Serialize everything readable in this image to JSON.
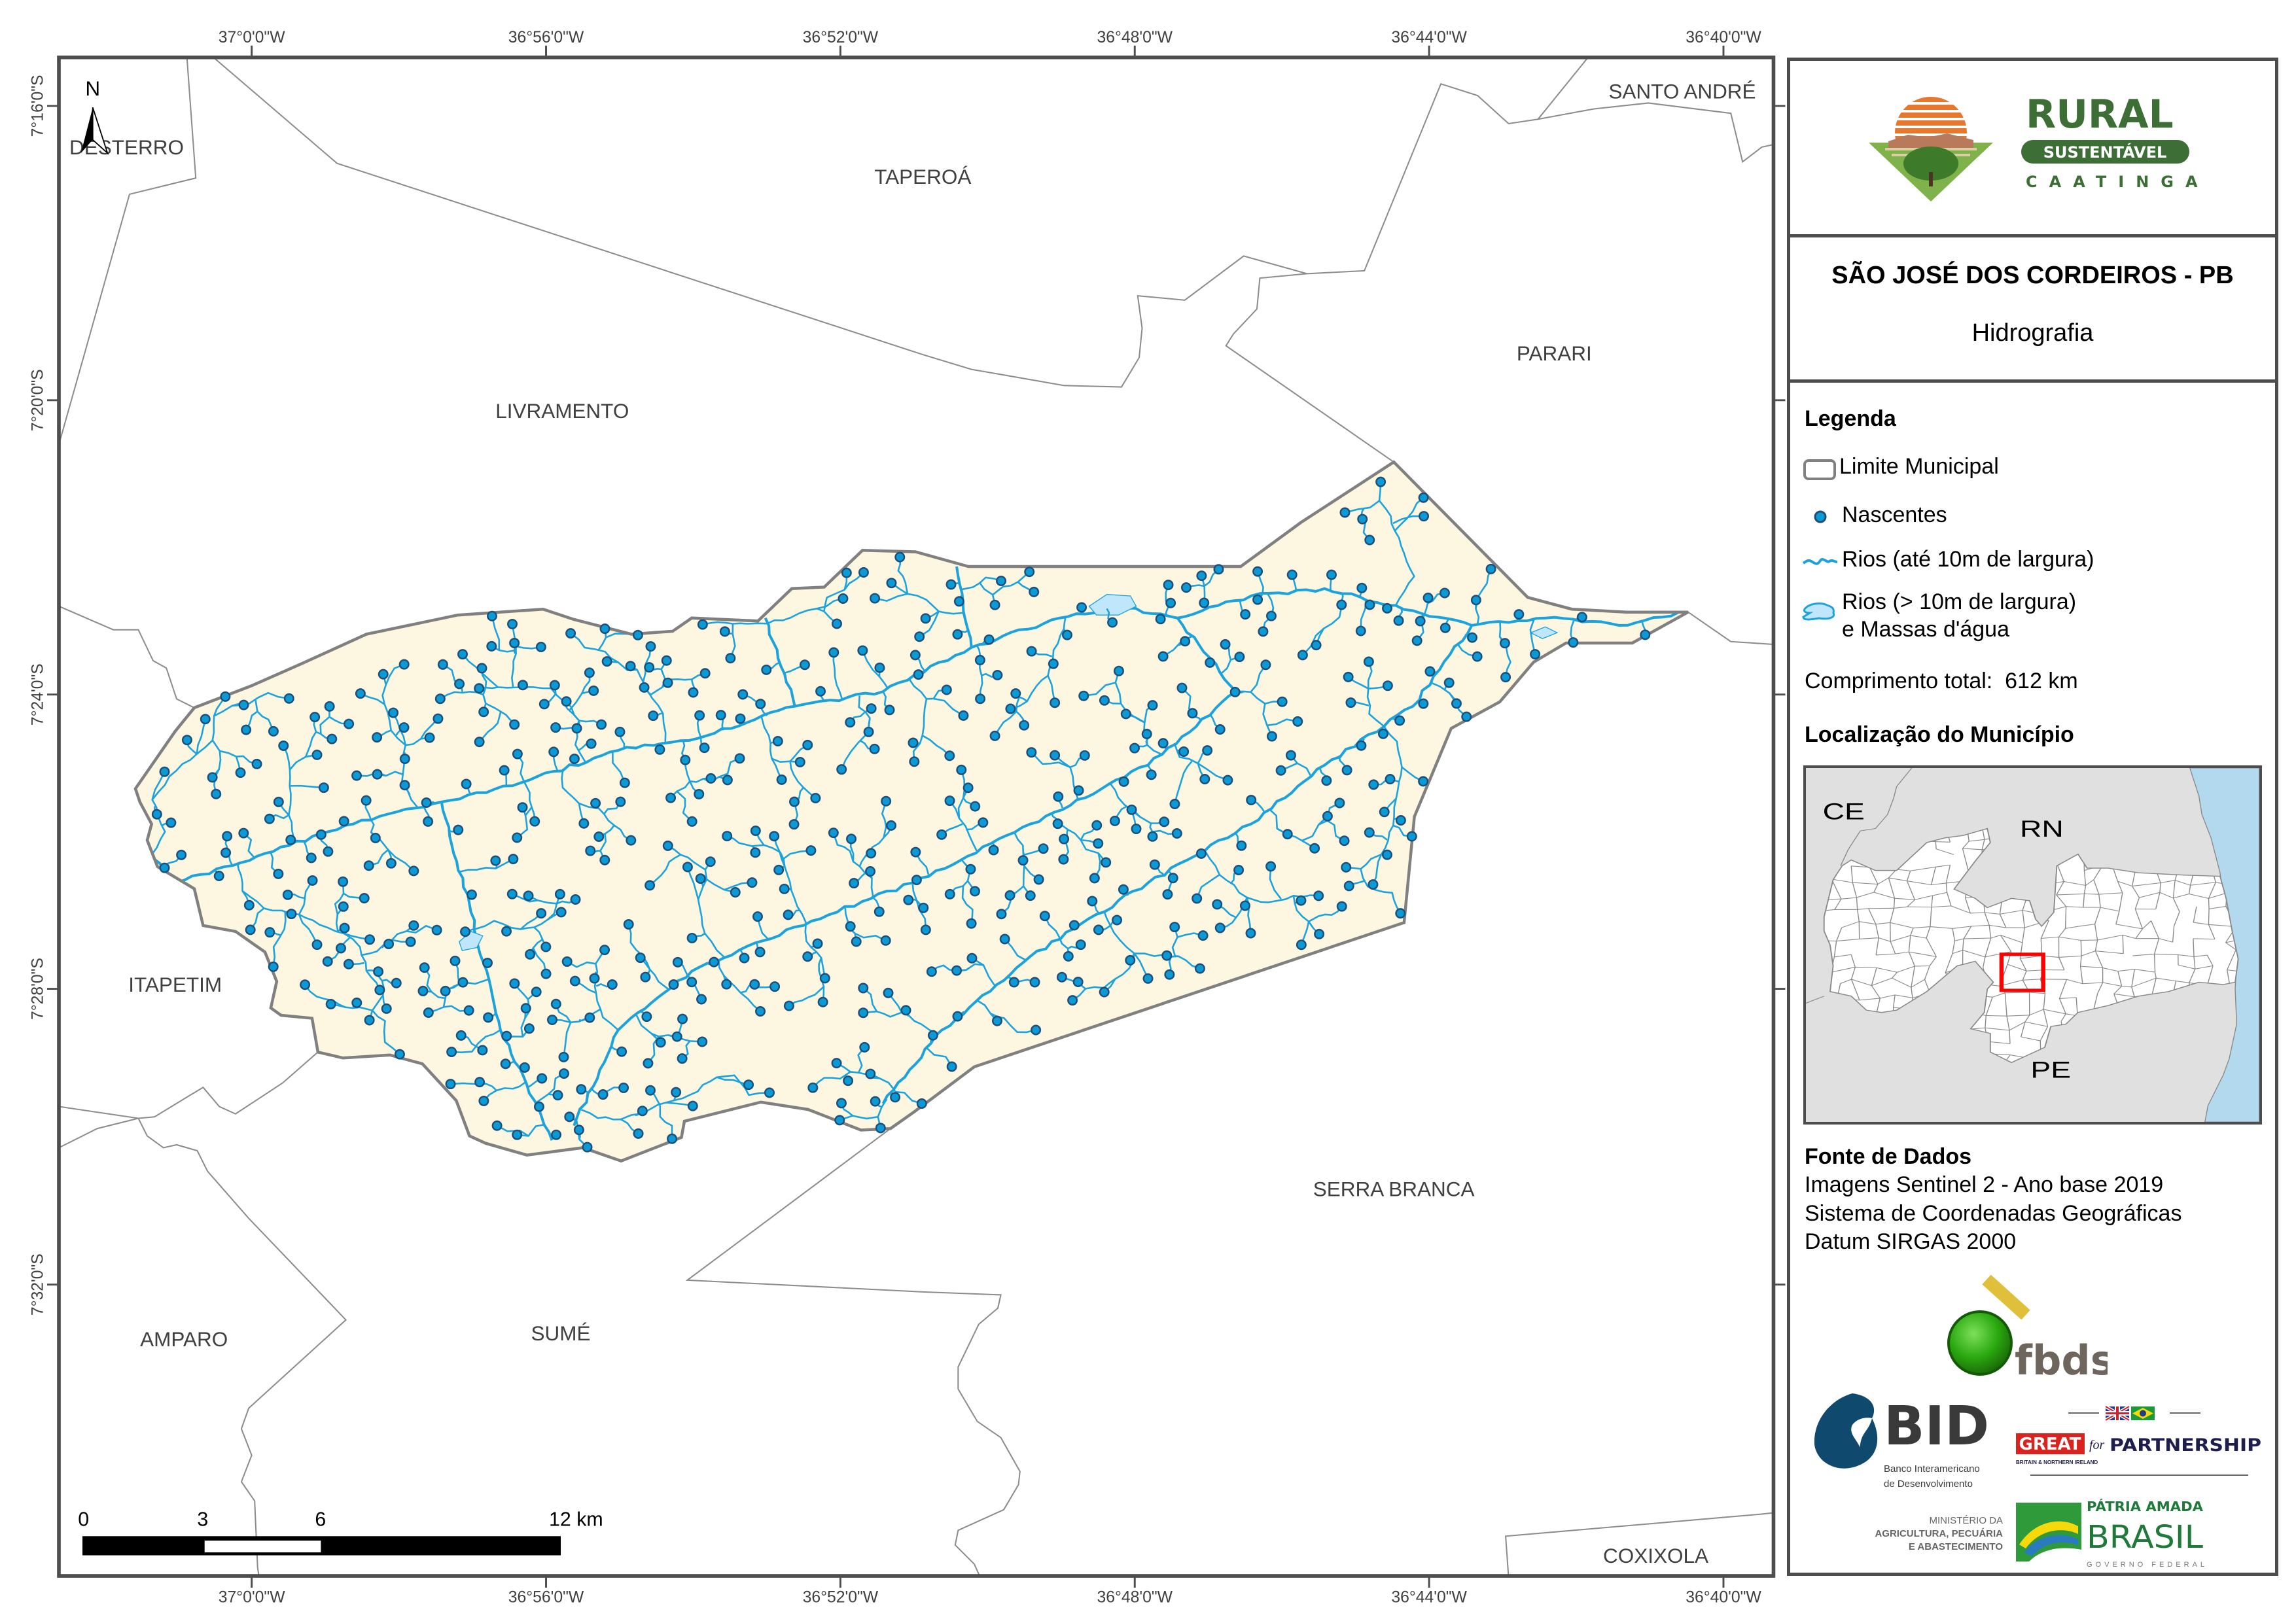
{
  "colors": {
    "municipality_fill": "#fdf6e0",
    "municipality_border": "#808080",
    "neighbor_border": "#8c8c8c",
    "river": "#1ca3dc",
    "spring_fill": "#0a9bd6",
    "spring_stroke": "#1f4e79",
    "water_body": "#bfe6fa",
    "frame": "#4d4d4d",
    "locator_highlight": "#ff0000",
    "sea": "#b3d9ef",
    "land_other": "#e0e0e0"
  },
  "map": {
    "north_label": "N",
    "ticks_lon": [
      "37°0'0\"W",
      "36°56'0\"W",
      "36°52'0\"W",
      "36°48'0\"W",
      "36°44'0\"W",
      "36°40'0\"W"
    ],
    "ticks_lat": [
      "7°16'0\"S",
      "7°20'0\"S",
      "7°24'0\"S",
      "7°28'0\"S",
      "7°32'0\"S"
    ],
    "neighbors": {
      "desterro": "DESTERRO",
      "taperoa": "TAPEROÁ",
      "santo_andre": "SANTO ANDRÉ",
      "livramento": "LIVRAMENTO",
      "parari": "PARARI",
      "itapetim": "ITAPETIM",
      "amparo": "AMPARO",
      "sume": "SUMÉ",
      "serra_branca": "SERRA BRANCA",
      "coxixola": "COXIXOLA"
    },
    "scale_bar": {
      "labels": [
        "0",
        "3",
        "6",
        "12 km"
      ]
    }
  },
  "panel": {
    "logo_rural": {
      "line1": "RURAL",
      "line2": "SUSTENTÁVEL",
      "line3": "CAATINGA"
    },
    "title": "SÃO JOSÉ DOS CORDEIROS - PB",
    "subtitle": "Hidrografia",
    "legend": {
      "heading": "Legenda",
      "items": [
        {
          "label": "Limite Municipal",
          "icon": "polygon-outline-icon"
        },
        {
          "label": "Nascentes",
          "icon": "spring-dot-icon"
        },
        {
          "label": "Rios (até 10m de largura)",
          "icon": "river-line-icon"
        },
        {
          "label": "Rios (> 10m de largura)",
          "label2": "e Massas d'água",
          "icon": "water-body-icon"
        }
      ],
      "total_length_label": "Comprimento total:",
      "total_length_value": "612 km"
    },
    "locator": {
      "heading": "Localização do Município",
      "labels": {
        "ce": "CE",
        "rn": "RN",
        "pe": "PE"
      }
    },
    "sources": {
      "heading": "Fonte de Dados",
      "lines": [
        "Imagens Sentinel 2 - Ano base 2019",
        "Sistema de Coordenadas Geográficas",
        "Datum SIRGAS 2000"
      ]
    },
    "logos": {
      "fbds": "fbds",
      "bid": "BID",
      "bid_sub1": "Banco Interamericano",
      "bid_sub2": "de Desenvolvimento",
      "great": "GREAT",
      "great_for": "for",
      "great_partner": "PARTNERSHIP",
      "great_sub": "BRITAIN & NORTHERN IRELAND",
      "ministerio1": "MINISTÉRIO DA",
      "ministerio2": "AGRICULTURA, PECUÁRIA",
      "ministerio3": "E ABASTECIMENTO",
      "brasil1": "PÁTRIA AMADA",
      "brasil2": "BRASIL",
      "brasil3": "GOVERNO FEDERAL"
    }
  }
}
